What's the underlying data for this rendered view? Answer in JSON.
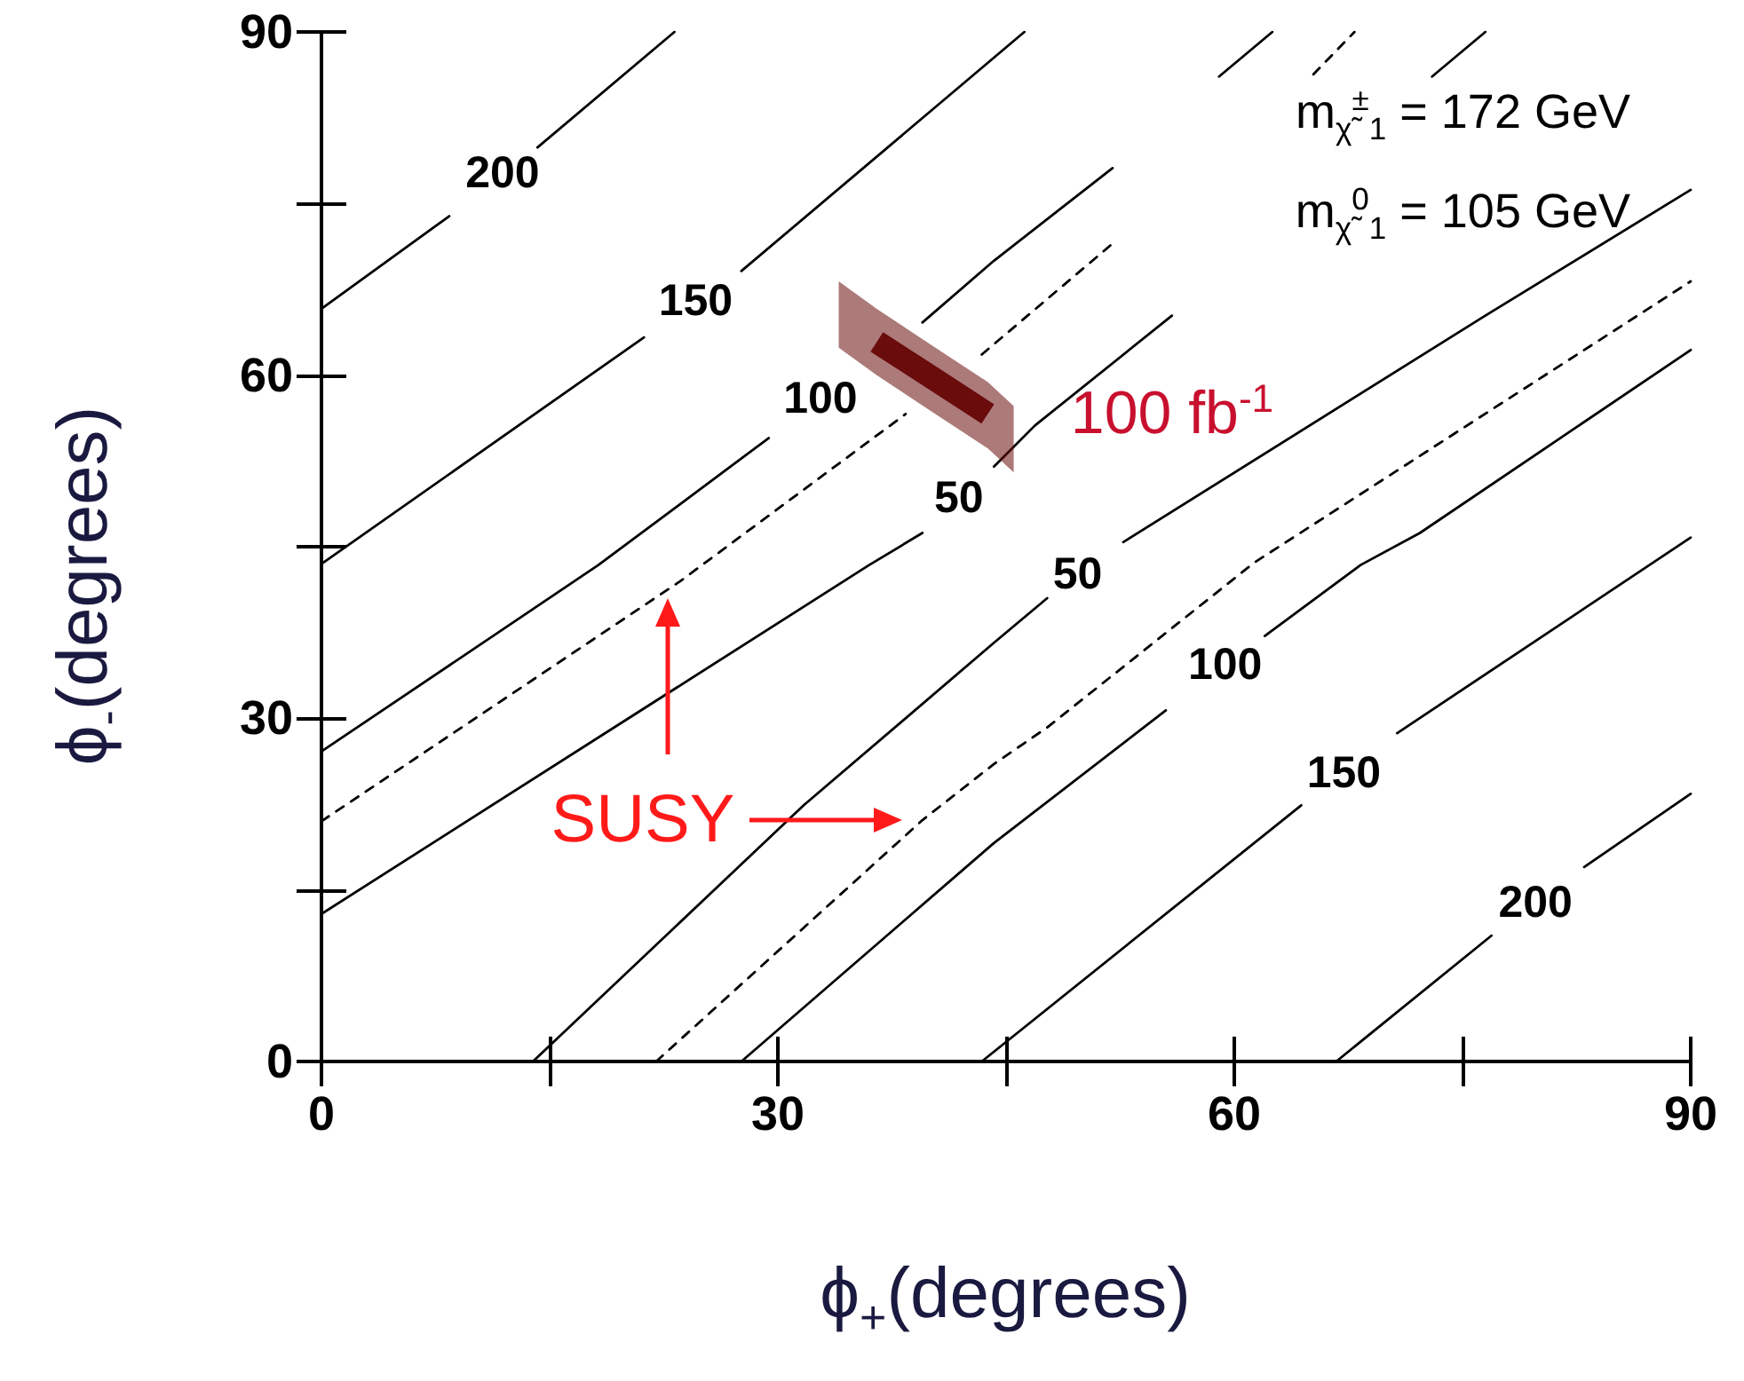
{
  "chart_data": {
    "type": "line",
    "xlabel": "ϕ$_{+}$(degrees)",
    "ylabel": "ϕ$_{-}$(degrees)",
    "xlim": [
      0,
      90
    ],
    "ylim": [
      0,
      90
    ],
    "xticks": [
      0,
      {
        "value": 15,
        "label": null
      },
      30,
      {
        "value": 45,
        "label": null
      },
      60,
      {
        "value": 75,
        "label": null
      },
      90
    ],
    "yticks": [
      0,
      {
        "value": 15,
        "label": null
      },
      30,
      {
        "value": 45,
        "label": null
      },
      60,
      {
        "value": 75,
        "label": null
      },
      90
    ],
    "grid": false,
    "marker": "none",
    "line_style": "solid",
    "series": [
      {
        "name": "200",
        "color": "#000000",
        "x": [
          0,
          8.4,
          11.9,
          14.2,
          23.2
        ],
        "values": [
          65.8,
          73.9,
          null,
          79.9,
          90
        ]
      },
      {
        "name": "150",
        "color": "#000000",
        "x": [
          0,
          21.2,
          24.6,
          27.6,
          46.2
        ],
        "values": [
          43.5,
          63.3,
          null,
          69.1,
          90
        ]
      },
      {
        "name": "100",
        "color": "#000000",
        "x": [
          0,
          18.2,
          29.4,
          32.8,
          39.5,
          44.2,
          52.0,
          55,
          59.0,
          62.5
        ],
        "values": [
          27.1,
          43.4,
          54.5,
          null,
          64.6,
          70.0,
          78.1,
          null,
          86.1,
          90
        ]
      },
      {
        "color": "#000000",
        "line_style": "dashed",
        "x": [
          0,
          23.6,
          38.4,
          41,
          43.4,
          52.0,
          58,
          65.2,
          67.9
        ],
        "values": [
          21.0,
          42.0,
          56.6,
          null,
          61.8,
          71.5,
          null,
          86.3,
          90
        ]
      },
      {
        "name": "50",
        "color": "#000000",
        "x": [
          0,
          36.0,
          39.5,
          41.9,
          44.2,
          46.9,
          55.9,
          65,
          73.0,
          76.5
        ],
        "values": [
          12.9,
          43.4,
          46.2,
          null,
          52.0,
          55.6,
          65.2,
          null,
          86.1,
          90
        ]
      },
      {
        "name": "50",
        "color": "#000000",
        "x": [
          13.9,
          31.7,
          44.2,
          47.7,
          49.7,
          52.7,
          76.5,
          90
        ],
        "values": [
          0,
          22.4,
          36.6,
          40.5,
          null,
          45.4,
          65.2,
          76.2
        ]
      },
      {
        "color": "#000000",
        "line_style": "dashed",
        "x": [
          22.0,
          39.5,
          44.2,
          47.7,
          61.3,
          90
        ],
        "values": [
          0,
          21.1,
          26.0,
          29.2,
          43.6,
          68.2
        ]
      },
      {
        "name": "100",
        "color": "#000000",
        "x": [
          27.6,
          44.2,
          55.5,
          59.4,
          62.0,
          68.3,
          72.2,
          90
        ],
        "values": [
          0,
          19.1,
          30.7,
          null,
          37.2,
          43.4,
          46.2,
          62.2
        ]
      },
      {
        "name": "150",
        "color": "#000000",
        "x": [
          43.4,
          64.4,
          67.2,
          70.7,
          90
        ],
        "values": [
          0,
          22.4,
          null,
          28.7,
          45.8
        ]
      },
      {
        "name": "200",
        "color": "#000000",
        "x": [
          66.7,
          76.9,
          79.8,
          83.0,
          90
        ],
        "values": [
          0,
          11.0,
          null,
          17.0,
          23.4
        ]
      },
      {
        "color": "#6a0c0c",
        "x": [
          34,
          36.5,
          40,
          43.8,
          45.5
        ],
        "values": [
          null,
          62.9,
          59.9,
          56.6,
          null
        ],
        "lower": [
          62.4,
          60.0,
          56.9,
          53.6,
          51.5
        ],
        "upper": [
          68.2,
          65.8,
          62.7,
          59.4,
          57.3
        ]
      }
    ],
    "annotations": [
      "100 fb$^{-1}$",
      "SUSY",
      "m$_{χ̃}$$^{±}$$_{1}$ = 172 GeV",
      "m$_{χ̃}$$^{0}$$_{1}$ = 105 GeV"
    ]
  }
}
